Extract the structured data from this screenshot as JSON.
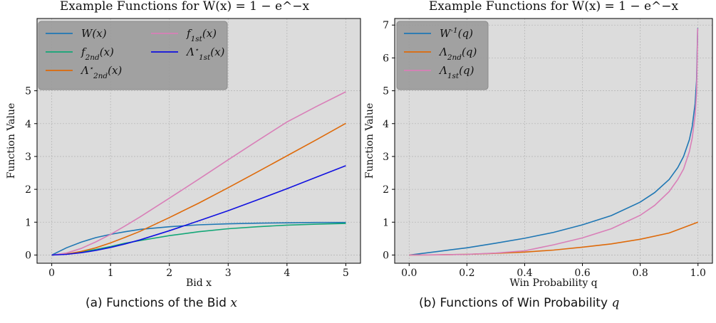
{
  "captions": [
    {
      "prefix": "(a) Functions of the Bid",
      "var": "x"
    },
    {
      "prefix": "(b) Functions of Win Probability",
      "var": "q"
    }
  ],
  "colors": {
    "background": "#dcdcdc",
    "grid": "#b8b8b8",
    "legend_box": "#9a9a9a",
    "blue": "#1f77b4",
    "green": "#13a777",
    "orange": "#de6a0a",
    "pink": "#d97fb8",
    "brightblue": "#1010e0"
  },
  "chart_data": [
    {
      "type": "line",
      "title": "Example Functions for W(x) = 1 − e^−x",
      "xlabel": "Bid x",
      "ylabel": "Function Value",
      "xlim": [
        -0.25,
        5.25
      ],
      "ylim": [
        -0.25,
        7.2
      ],
      "xticks": [
        0,
        1,
        2,
        3,
        4,
        5
      ],
      "xtick_labels": [
        "0",
        "1",
        "2",
        "3",
        "4",
        "5"
      ],
      "yticks": [
        0,
        1,
        2,
        3,
        4,
        5
      ],
      "ytick_labels": [
        "0",
        "1",
        "2",
        "3",
        "4",
        "5"
      ],
      "grid": true,
      "legend_position": "top-left",
      "legend_columns": 2,
      "series": [
        {
          "name": "W(x)",
          "color": "blue",
          "x": [
            0,
            0.25,
            0.5,
            0.75,
            1,
            1.25,
            1.5,
            2,
            2.5,
            3,
            3.5,
            4,
            4.5,
            5
          ],
          "y": [
            0,
            0.22,
            0.39,
            0.53,
            0.63,
            0.71,
            0.78,
            0.86,
            0.92,
            0.95,
            0.97,
            0.98,
            0.99,
            0.99
          ]
        },
        {
          "name": "f_2nd(x)",
          "color": "green",
          "x": [
            0,
            0.25,
            0.5,
            0.75,
            1,
            1.25,
            1.5,
            2,
            2.5,
            3,
            3.5,
            4,
            4.5,
            5
          ],
          "y": [
            0,
            0.03,
            0.09,
            0.17,
            0.26,
            0.36,
            0.44,
            0.59,
            0.71,
            0.8,
            0.86,
            0.91,
            0.94,
            0.96
          ]
        },
        {
          "name": "Λ*_2nd(x)",
          "color": "orange",
          "x": [
            0,
            0.25,
            0.5,
            0.75,
            1,
            1.25,
            1.5,
            2,
            2.5,
            3,
            3.5,
            4,
            4.5,
            5
          ],
          "y": [
            0,
            0.03,
            0.11,
            0.22,
            0.37,
            0.54,
            0.72,
            1.14,
            1.58,
            2.05,
            2.53,
            3.02,
            3.51,
            4.01
          ]
        },
        {
          "name": "f_1st(x)",
          "color": "pink",
          "x": [
            0,
            0.25,
            0.5,
            0.75,
            1,
            1.25,
            1.5,
            2,
            2.5,
            3,
            3.5,
            4,
            4.5,
            5
          ],
          "y": [
            0,
            0.06,
            0.2,
            0.4,
            0.63,
            0.89,
            1.16,
            1.73,
            2.31,
            2.9,
            3.48,
            4.05,
            4.52,
            4.97
          ]
        },
        {
          "name": "Λ*_1st(x)",
          "color": "brightblue",
          "x": [
            0,
            0.25,
            0.5,
            0.75,
            1,
            1.25,
            1.5,
            2,
            2.5,
            3,
            3.5,
            4,
            4.5,
            5
          ],
          "y": [
            0,
            0.02,
            0.07,
            0.14,
            0.23,
            0.34,
            0.46,
            0.74,
            1.04,
            1.35,
            1.68,
            2.02,
            2.37,
            2.72
          ]
        }
      ],
      "legend_order": [
        0,
        3,
        1,
        4,
        2
      ]
    },
    {
      "type": "line",
      "title": "Example Functions for W(x) = 1 − e^−x",
      "xlabel": "Win Probability q",
      "ylabel": "Function Value",
      "xlim": [
        -0.05,
        1.05
      ],
      "ylim": [
        -0.25,
        7.2
      ],
      "xticks": [
        0,
        0.2,
        0.4,
        0.6,
        0.8,
        1.0
      ],
      "xtick_labels": [
        "0.0",
        "0.2",
        "0.4",
        "0.6",
        "0.8",
        "1.0"
      ],
      "yticks": [
        0,
        1,
        2,
        3,
        4,
        5,
        6,
        7
      ],
      "ytick_labels": [
        "0",
        "1",
        "2",
        "3",
        "4",
        "5",
        "6",
        "7"
      ],
      "grid": true,
      "legend_position": "top-left",
      "legend_columns": 1,
      "series": [
        {
          "name": "W^{-1}(q)",
          "color": "blue",
          "x": [
            0,
            0.1,
            0.2,
            0.3,
            0.4,
            0.5,
            0.6,
            0.7,
            0.8,
            0.85,
            0.9,
            0.93,
            0.95,
            0.97,
            0.98,
            0.99,
            0.995,
            0.999
          ],
          "y": [
            0,
            0.11,
            0.22,
            0.36,
            0.51,
            0.69,
            0.92,
            1.2,
            1.61,
            1.9,
            2.3,
            2.66,
            3.0,
            3.51,
            3.91,
            4.61,
            5.3,
            6.91
          ]
        },
        {
          "name": "Λ_2nd(q)",
          "color": "orange",
          "x": [
            0,
            0.1,
            0.2,
            0.3,
            0.4,
            0.5,
            0.6,
            0.7,
            0.8,
            0.9,
            1.0
          ],
          "y": [
            0,
            0.005,
            0.02,
            0.05,
            0.09,
            0.15,
            0.24,
            0.34,
            0.48,
            0.67,
            1.0
          ]
        },
        {
          "name": "Λ_1st(q)",
          "color": "pink",
          "x": [
            0,
            0.1,
            0.2,
            0.3,
            0.4,
            0.5,
            0.6,
            0.7,
            0.8,
            0.85,
            0.9,
            0.93,
            0.95,
            0.97,
            0.98,
            0.99,
            0.995,
            0.999
          ],
          "y": [
            0,
            0.005,
            0.02,
            0.06,
            0.13,
            0.31,
            0.52,
            0.8,
            1.21,
            1.51,
            1.93,
            2.3,
            2.62,
            3.15,
            3.56,
            4.26,
            4.95,
            6.9
          ]
        }
      ],
      "legend_order": [
        0,
        1,
        2
      ]
    }
  ]
}
